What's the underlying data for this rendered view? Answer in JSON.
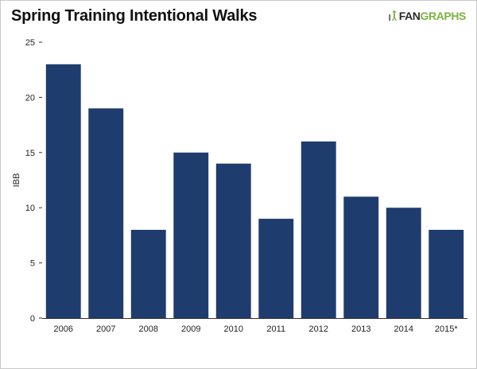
{
  "title": "Spring Training Intentional Walks",
  "logo": {
    "part1": "FAN",
    "part2": "GRAPHS",
    "icon": "fangraphs-player-icon"
  },
  "colors": {
    "bar": "#1f3c6e",
    "axis": "#333333",
    "logo_green": "#7cb342"
  },
  "chart_data": {
    "type": "bar",
    "title": "Spring Training Intentional Walks",
    "xlabel": "",
    "ylabel": "IBB",
    "categories": [
      "2006",
      "2007",
      "2008",
      "2009",
      "2010",
      "2011",
      "2012",
      "2013",
      "2014",
      "2015*"
    ],
    "values": [
      23,
      19,
      8,
      15,
      14,
      9,
      16,
      11,
      10,
      8
    ],
    "ylim": [
      0,
      25
    ],
    "yticks": [
      0,
      5,
      10,
      15,
      20,
      25
    ],
    "grid": false,
    "legend": "none"
  }
}
